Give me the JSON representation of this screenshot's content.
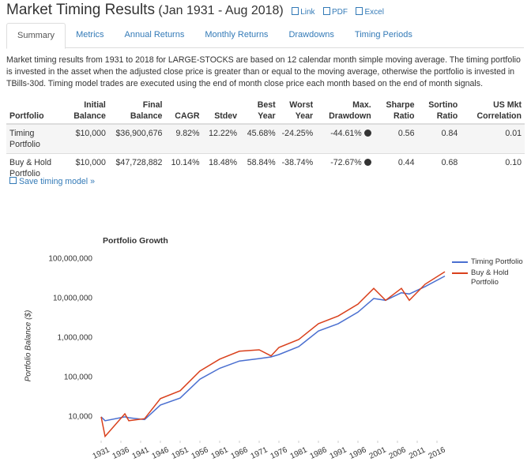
{
  "header": {
    "title": "Market Timing Results",
    "subtitle": "(Jan 1931 - Aug 2018)",
    "links": [
      "Link",
      "PDF",
      "Excel"
    ]
  },
  "tabs": [
    "Summary",
    "Metrics",
    "Annual Returns",
    "Monthly Returns",
    "Drawdowns",
    "Timing Periods"
  ],
  "description": "Market timing results from 1931 to 2018 for LARGE-STOCKS are based on 12 calendar month simple moving average. The timing portfolio is invested in the asset when the adjusted close price is greater than or equal to the moving average, otherwise the portfolio is invested in TBills-30d. Timing model trades are executed using the end of month close price each month based on the end of month signals.",
  "table": {
    "header": [
      "Portfolio",
      "Initial Balance",
      "Final Balance",
      "CAGR",
      "Stdev",
      "Best Year",
      "Worst Year",
      "Max. Drawdown",
      "Sharpe Ratio",
      "Sortino Ratio",
      "US Mkt Correlation"
    ],
    "rows": [
      [
        "Timing Portfolio",
        "$10,000",
        "$36,900,676",
        "9.82%",
        "12.22%",
        "45.68%",
        "-24.25%",
        "-44.61%",
        "0.56",
        "0.84",
        "0.01"
      ],
      [
        "Buy & Hold Portfolio",
        "$10,000",
        "$47,728,882",
        "10.14%",
        "18.48%",
        "58.84%",
        "-38.74%",
        "-72.67%",
        "0.44",
        "0.68",
        "0.10"
      ]
    ]
  },
  "save_link": "Save timing model »",
  "chart_data": {
    "type": "line",
    "title": "Portfolio Growth",
    "y_label": "Portfolio Balance ($)",
    "log_scale": true,
    "grid": false,
    "legend": "right",
    "x": [
      1931,
      1932,
      1937,
      1938,
      1942,
      1946,
      1951,
      1956,
      1961,
      1966,
      1971,
      1974,
      1976,
      1981,
      1986,
      1991,
      1996,
      2000,
      2003,
      2007,
      2009,
      2013,
      2018
    ],
    "series": [
      {
        "name": "Timing Portfolio",
        "color": "#4a6fd0",
        "values": [
          10000,
          8000,
          10000,
          9500,
          8500,
          20000,
          30000,
          90000,
          170000,
          260000,
          300000,
          330000,
          380000,
          600000,
          1500000,
          2300000,
          4500000,
          10000000,
          9000000,
          14000000,
          13000000,
          20000000,
          36900676
        ]
      },
      {
        "name": "Buy & Hold Portfolio",
        "color": "#d9401c",
        "values": [
          10000,
          3200,
          12000,
          8000,
          9000,
          29000,
          46000,
          145000,
          290000,
          460000,
          500000,
          350000,
          575000,
          910000,
          2300000,
          3600000,
          7200000,
          18000000,
          9000000,
          18000000,
          9000000,
          23000000,
          47728882
        ]
      }
    ],
    "xlim": [
      1930,
      2019
    ],
    "xticks": [
      1931,
      1936,
      1941,
      1946,
      1951,
      1956,
      1961,
      1966,
      1971,
      1976,
      1981,
      1986,
      1991,
      1996,
      2001,
      2006,
      2011,
      2016
    ],
    "ylim": [
      2500,
      100000000
    ],
    "yticks": [
      {
        "value": 10000,
        "label": "10,000"
      },
      {
        "value": 100000,
        "label": "100,000"
      },
      {
        "value": 1000000,
        "label": "1,000,000"
      },
      {
        "value": 10000000,
        "label": "10,000,000"
      },
      {
        "value": 100000000,
        "label": "100,000,000"
      }
    ]
  }
}
